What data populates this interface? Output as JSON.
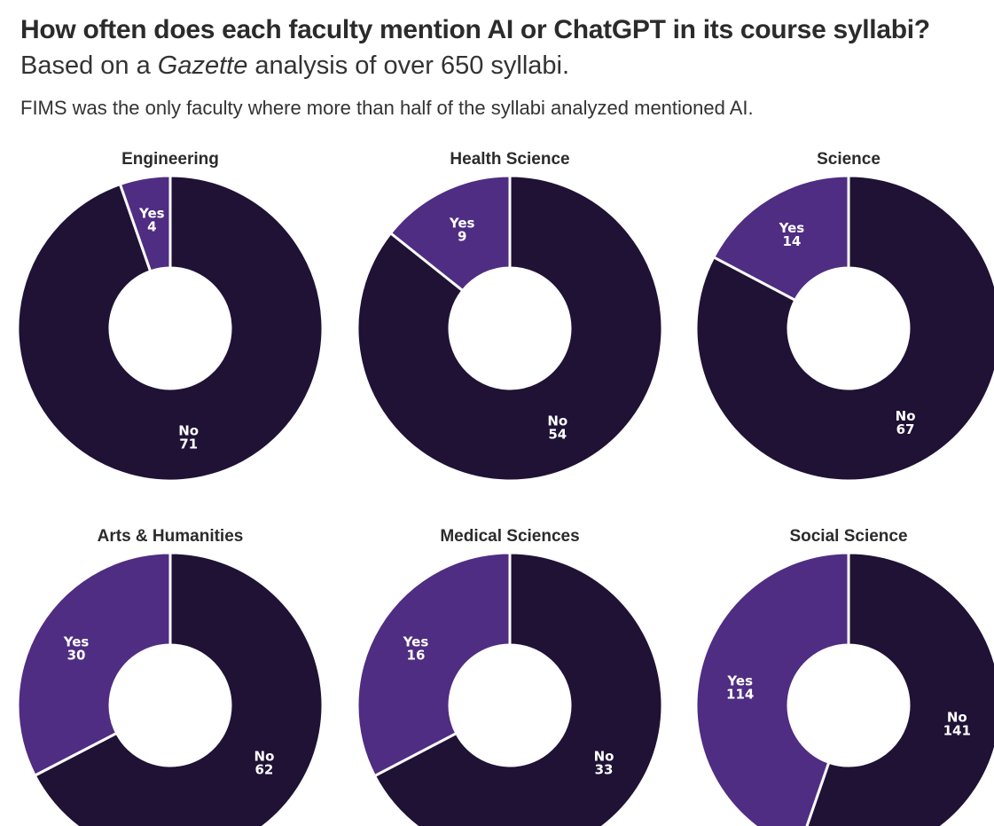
{
  "header": {
    "title": "How often does each faculty mention AI or ChatGPT in its course syllabi?",
    "subtitle_prefix": "Based on a ",
    "subtitle_publication": "Gazette",
    "subtitle_suffix": " analysis of over 650 syllabi.",
    "note": "FIMS was the only faculty where more than half of the syllabi analyzed mentioned AI."
  },
  "colors": {
    "yes": "#4f2d82",
    "no": "#1f1235",
    "separator": "#ffffff"
  },
  "chart_data": {
    "type": "pie",
    "variant": "donut",
    "categories": [
      "Yes",
      "No"
    ],
    "facets": [
      {
        "title": "Engineering",
        "yes": 4,
        "no": 71
      },
      {
        "title": "Health Science",
        "yes": 9,
        "no": 54
      },
      {
        "title": "Science",
        "yes": 14,
        "no": 67
      },
      {
        "title": "Arts & Humanities",
        "yes": 30,
        "no": 62
      },
      {
        "title": "Medical Sciences",
        "yes": 16,
        "no": 33
      },
      {
        "title": "Social Science",
        "yes": 114,
        "no": 141
      }
    ]
  }
}
